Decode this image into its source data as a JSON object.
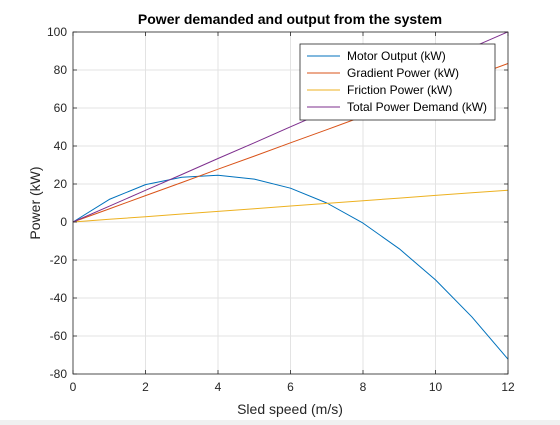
{
  "chart_data": {
    "type": "line",
    "title": "Power demanded and output from the system",
    "xlabel": "Sled speed (m/s)",
    "ylabel": "Power (kW)",
    "xlim": [
      0,
      12
    ],
    "ylim": [
      -80,
      100
    ],
    "xticks": [
      0,
      2,
      4,
      6,
      8,
      10,
      12
    ],
    "yticks": [
      -80,
      -60,
      -40,
      -20,
      0,
      20,
      40,
      60,
      80,
      100
    ],
    "grid": true,
    "legend_position": "top-right",
    "x": [
      0,
      1,
      2,
      3,
      4,
      5,
      6,
      7,
      8,
      9,
      10,
      11,
      12
    ],
    "series": [
      {
        "name": "Motor Output (kW)",
        "color": "#0072BD",
        "values": [
          0,
          11.9,
          19.7,
          23.6,
          24.6,
          22.6,
          17.8,
          10.0,
          -0.6,
          -14.1,
          -30.5,
          -49.9,
          -72.2
        ]
      },
      {
        "name": "Gradient Power (kW)",
        "color": "#D95319",
        "values": [
          0,
          6.9,
          13.9,
          20.8,
          27.8,
          34.7,
          41.7,
          48.6,
          55.6,
          62.5,
          69.5,
          76.4,
          83.4
        ]
      },
      {
        "name": "Friction Power (kW)",
        "color": "#EDB120",
        "values": [
          0,
          1.4,
          2.8,
          4.2,
          5.6,
          7.0,
          8.4,
          9.8,
          11.2,
          12.6,
          14.0,
          15.4,
          16.7
        ]
      },
      {
        "name": "Total Power Demand (kW)",
        "color": "#7E2F8E",
        "values": [
          0,
          8.3,
          16.7,
          25.0,
          33.4,
          41.7,
          50.1,
          58.4,
          66.8,
          75.1,
          83.5,
          91.8,
          100.1
        ]
      }
    ]
  }
}
